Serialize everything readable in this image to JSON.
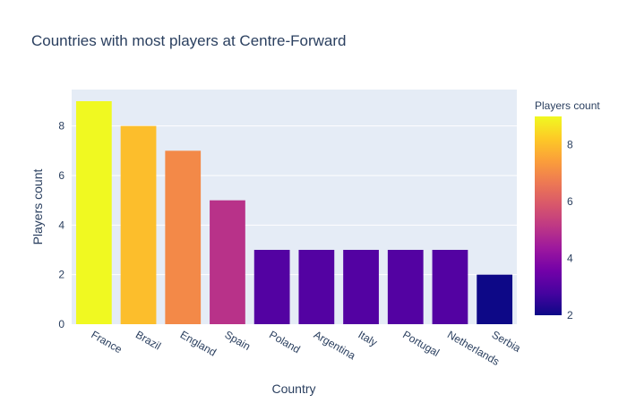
{
  "chart_data": {
    "type": "bar",
    "title": "Countries with most players at Centre-Forward",
    "xlabel": "Country",
    "ylabel": "Players count",
    "categories": [
      "France",
      "Brazil",
      "England",
      "Spain",
      "Poland",
      "Argentina",
      "Italy",
      "Portugal",
      "Netherlands",
      "Serbia"
    ],
    "values": [
      9,
      8,
      7,
      5,
      3,
      3,
      3,
      3,
      3,
      2
    ],
    "ylim": [
      0,
      9.47
    ],
    "yticks": [
      0,
      2,
      4,
      6,
      8
    ],
    "grid": true,
    "plot_background": "#e5ecf6",
    "colorbar": {
      "title": "Players count",
      "range": [
        2,
        9
      ],
      "ticks": [
        2,
        4,
        6,
        8
      ],
      "colorscale": [
        "#0d0887",
        "#46039f",
        "#7201a8",
        "#9c179e",
        "#bd3786",
        "#d8576b",
        "#ed7953",
        "#fb9f3a",
        "#fdca26",
        "#f0f921"
      ]
    }
  }
}
